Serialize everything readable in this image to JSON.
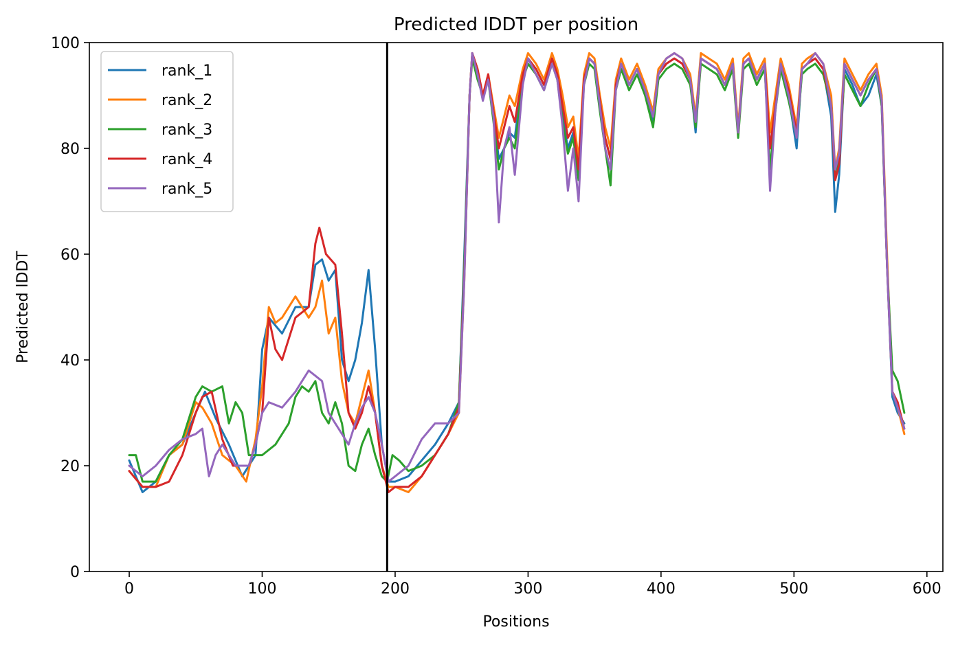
{
  "chart_data": {
    "type": "line",
    "title": "Predicted lDDT per position",
    "xlabel": "Positions",
    "ylabel": "Predicted lDDT",
    "xlim": [
      -30,
      612
    ],
    "ylim": [
      0,
      100
    ],
    "xticks": [
      0,
      100,
      200,
      300,
      400,
      500,
      600
    ],
    "yticks": [
      0,
      20,
      40,
      60,
      80,
      100
    ],
    "grid": false,
    "legend_position": "upper-left",
    "vline_x": 194,
    "vline_color": "#000000",
    "series": [
      {
        "name": "rank_1",
        "color": "#1f77b4",
        "x": [
          0,
          10,
          20,
          30,
          40,
          50,
          57,
          65,
          75,
          85,
          95,
          100,
          105,
          115,
          125,
          135,
          140,
          145,
          150,
          155,
          160,
          165,
          170,
          175,
          180,
          185,
          190,
          195,
          200,
          210,
          220,
          230,
          240,
          248,
          252,
          256,
          258,
          262,
          266,
          270,
          274,
          278,
          282,
          286,
          290,
          296,
          300,
          306,
          312,
          318,
          322,
          326,
          330,
          334,
          338,
          342,
          346,
          350,
          354,
          358,
          362,
          366,
          370,
          376,
          382,
          388,
          394,
          398,
          404,
          410,
          416,
          422,
          426,
          430,
          436,
          442,
          448,
          454,
          458,
          462,
          466,
          472,
          478,
          482,
          486,
          490,
          496,
          502,
          506,
          510,
          516,
          522,
          528,
          531,
          534,
          538,
          544,
          550,
          556,
          562,
          566,
          570,
          574,
          578,
          583
        ],
        "y": [
          21,
          15,
          17,
          22,
          24,
          30,
          34,
          29,
          24,
          18,
          22,
          42,
          48,
          45,
          50,
          50,
          58,
          59,
          55,
          57,
          40,
          36,
          40,
          47,
          57,
          42,
          24,
          17,
          17,
          18,
          21,
          24,
          28,
          32,
          60,
          90,
          98,
          94,
          90,
          93,
          86,
          78,
          80,
          83,
          82,
          94,
          97,
          95,
          92,
          97,
          94,
          86,
          80,
          83,
          75,
          93,
          97,
          96,
          88,
          82,
          78,
          92,
          96,
          92,
          95,
          91,
          85,
          94,
          96,
          97,
          96,
          93,
          83,
          97,
          96,
          95,
          92,
          96,
          83,
          96,
          97,
          93,
          96,
          80,
          88,
          96,
          90,
          80,
          95,
          96,
          97,
          95,
          86,
          68,
          75,
          95,
          92,
          88,
          90,
          94,
          88,
          58,
          33,
          30,
          28
        ]
      },
      {
        "name": "rank_2",
        "color": "#ff7f0e",
        "x": [
          0,
          10,
          20,
          30,
          40,
          50,
          55,
          62,
          70,
          80,
          88,
          95,
          100,
          105,
          110,
          115,
          125,
          135,
          140,
          145,
          150,
          155,
          160,
          165,
          170,
          175,
          180,
          185,
          190,
          195,
          200,
          210,
          220,
          230,
          240,
          248,
          252,
          256,
          258,
          262,
          266,
          270,
          274,
          278,
          282,
          286,
          290,
          296,
          300,
          306,
          312,
          318,
          322,
          326,
          330,
          334,
          338,
          342,
          346,
          350,
          354,
          358,
          362,
          366,
          370,
          376,
          382,
          388,
          394,
          398,
          404,
          410,
          416,
          422,
          426,
          430,
          436,
          442,
          448,
          454,
          458,
          462,
          466,
          472,
          478,
          482,
          486,
          490,
          496,
          502,
          506,
          510,
          516,
          522,
          528,
          531,
          534,
          538,
          544,
          550,
          556,
          562,
          566,
          570,
          574,
          578,
          583
        ],
        "y": [
          19,
          16,
          16,
          22,
          24,
          32,
          31,
          28,
          22,
          20,
          17,
          25,
          35,
          50,
          47,
          48,
          52,
          48,
          50,
          55,
          45,
          48,
          36,
          30,
          28,
          33,
          38,
          30,
          20,
          16,
          16,
          15,
          18,
          22,
          26,
          30,
          55,
          90,
          98,
          95,
          90,
          94,
          88,
          82,
          86,
          90,
          88,
          95,
          98,
          96,
          93,
          98,
          95,
          90,
          84,
          86,
          78,
          94,
          98,
          97,
          90,
          84,
          80,
          93,
          97,
          93,
          96,
          92,
          87,
          95,
          97,
          98,
          97,
          94,
          86,
          98,
          97,
          96,
          93,
          97,
          84,
          97,
          98,
          94,
          97,
          83,
          90,
          97,
          92,
          84,
          96,
          97,
          98,
          96,
          90,
          76,
          80,
          97,
          94,
          91,
          94,
          96,
          90,
          60,
          34,
          31,
          26
        ]
      },
      {
        "name": "rank_3",
        "color": "#2ca02c",
        "x": [
          0,
          5,
          10,
          20,
          30,
          40,
          50,
          55,
          62,
          70,
          75,
          80,
          85,
          90,
          95,
          100,
          110,
          120,
          125,
          130,
          135,
          140,
          145,
          150,
          155,
          160,
          165,
          170,
          175,
          180,
          185,
          190,
          194,
          198,
          203,
          210,
          220,
          230,
          240,
          248,
          252,
          256,
          258,
          262,
          266,
          270,
          274,
          278,
          282,
          286,
          290,
          296,
          300,
          306,
          312,
          318,
          322,
          326,
          330,
          334,
          338,
          342,
          346,
          350,
          354,
          358,
          362,
          366,
          370,
          376,
          382,
          388,
          394,
          398,
          404,
          410,
          416,
          422,
          426,
          430,
          436,
          442,
          448,
          454,
          458,
          462,
          466,
          472,
          478,
          482,
          486,
          490,
          496,
          502,
          506,
          510,
          516,
          522,
          528,
          531,
          534,
          538,
          544,
          550,
          556,
          562,
          566,
          570,
          574,
          578,
          583
        ],
        "y": [
          22,
          22,
          17,
          17,
          22,
          25,
          33,
          35,
          34,
          35,
          28,
          32,
          30,
          22,
          22,
          22,
          24,
          28,
          33,
          35,
          34,
          36,
          30,
          28,
          32,
          28,
          20,
          19,
          24,
          27,
          22,
          18,
          17,
          22,
          21,
          19,
          20,
          22,
          26,
          32,
          58,
          90,
          97,
          93,
          90,
          93,
          85,
          76,
          80,
          82,
          80,
          93,
          96,
          94,
          91,
          96,
          93,
          85,
          79,
          82,
          74,
          92,
          96,
          95,
          87,
          80,
          73,
          91,
          95,
          91,
          94,
          90,
          84,
          93,
          95,
          96,
          95,
          92,
          84,
          96,
          95,
          94,
          91,
          95,
          82,
          95,
          96,
          92,
          95,
          76,
          87,
          95,
          89,
          82,
          94,
          95,
          96,
          94,
          88,
          74,
          78,
          94,
          91,
          88,
          92,
          95,
          88,
          58,
          38,
          36,
          30
        ]
      },
      {
        "name": "rank_4",
        "color": "#d62728",
        "x": [
          0,
          10,
          20,
          30,
          40,
          50,
          55,
          62,
          70,
          78,
          85,
          90,
          95,
          100,
          105,
          110,
          115,
          125,
          135,
          140,
          143,
          148,
          155,
          160,
          165,
          170,
          175,
          180,
          185,
          190,
          195,
          200,
          210,
          220,
          230,
          240,
          248,
          252,
          256,
          258,
          262,
          266,
          270,
          274,
          278,
          282,
          286,
          290,
          296,
          300,
          306,
          312,
          318,
          322,
          326,
          330,
          334,
          338,
          342,
          346,
          350,
          354,
          358,
          362,
          366,
          370,
          376,
          382,
          388,
          394,
          398,
          404,
          410,
          416,
          422,
          426,
          430,
          436,
          442,
          448,
          454,
          458,
          462,
          466,
          472,
          478,
          482,
          486,
          490,
          496,
          502,
          506,
          510,
          516,
          522,
          528,
          531,
          534,
          538,
          544,
          550,
          556,
          562,
          566,
          570,
          574,
          578,
          583
        ],
        "y": [
          19,
          16,
          16,
          17,
          22,
          30,
          33,
          34,
          25,
          20,
          20,
          20,
          24,
          30,
          48,
          42,
          40,
          48,
          50,
          62,
          65,
          60,
          58,
          45,
          30,
          27,
          30,
          35,
          30,
          20,
          15,
          16,
          16,
          18,
          22,
          26,
          31,
          56,
          90,
          98,
          95,
          90,
          94,
          87,
          80,
          84,
          88,
          85,
          94,
          97,
          95,
          92,
          97,
          94,
          88,
          82,
          84,
          76,
          93,
          97,
          96,
          89,
          82,
          78,
          92,
          96,
          92,
          95,
          91,
          86,
          94,
          96,
          97,
          96,
          93,
          85,
          97,
          96,
          95,
          92,
          96,
          83,
          96,
          97,
          93,
          96,
          80,
          88,
          96,
          91,
          83,
          95,
          96,
          97,
          95,
          88,
          74,
          77,
          96,
          93,
          90,
          93,
          95,
          89,
          58,
          34,
          32,
          27
        ]
      },
      {
        "name": "rank_5",
        "color": "#9467bd",
        "x": [
          0,
          10,
          20,
          30,
          40,
          50,
          55,
          60,
          65,
          70,
          80,
          90,
          95,
          100,
          105,
          115,
          125,
          130,
          135,
          140,
          145,
          150,
          155,
          160,
          165,
          170,
          175,
          180,
          185,
          190,
          195,
          200,
          210,
          220,
          230,
          240,
          248,
          252,
          256,
          258,
          262,
          266,
          270,
          274,
          278,
          282,
          286,
          290,
          296,
          300,
          306,
          312,
          318,
          322,
          326,
          330,
          334,
          338,
          342,
          346,
          350,
          354,
          358,
          362,
          366,
          370,
          376,
          382,
          388,
          394,
          398,
          404,
          410,
          416,
          422,
          426,
          430,
          436,
          442,
          448,
          454,
          458,
          462,
          466,
          472,
          478,
          482,
          486,
          490,
          496,
          502,
          506,
          510,
          516,
          522,
          528,
          531,
          534,
          538,
          544,
          550,
          556,
          562,
          566,
          570,
          574,
          578,
          583
        ],
        "y": [
          20,
          18,
          20,
          23,
          25,
          26,
          27,
          18,
          22,
          24,
          20,
          20,
          24,
          30,
          32,
          31,
          34,
          36,
          38,
          37,
          36,
          30,
          28,
          26,
          24,
          28,
          31,
          33,
          30,
          24,
          17,
          18,
          20,
          25,
          28,
          28,
          30,
          55,
          90,
          98,
          94,
          89,
          93,
          86,
          66,
          80,
          84,
          75,
          92,
          97,
          94,
          91,
          96,
          93,
          84,
          72,
          80,
          70,
          92,
          97,
          96,
          88,
          80,
          76,
          91,
          96,
          92,
          95,
          91,
          86,
          94,
          97,
          98,
          97,
          93,
          85,
          97,
          96,
          95,
          92,
          96,
          83,
          96,
          97,
          93,
          96,
          72,
          87,
          96,
          90,
          82,
          95,
          96,
          98,
          96,
          88,
          76,
          79,
          96,
          93,
          90,
          93,
          95,
          89,
          58,
          34,
          31,
          27
        ]
      }
    ]
  }
}
